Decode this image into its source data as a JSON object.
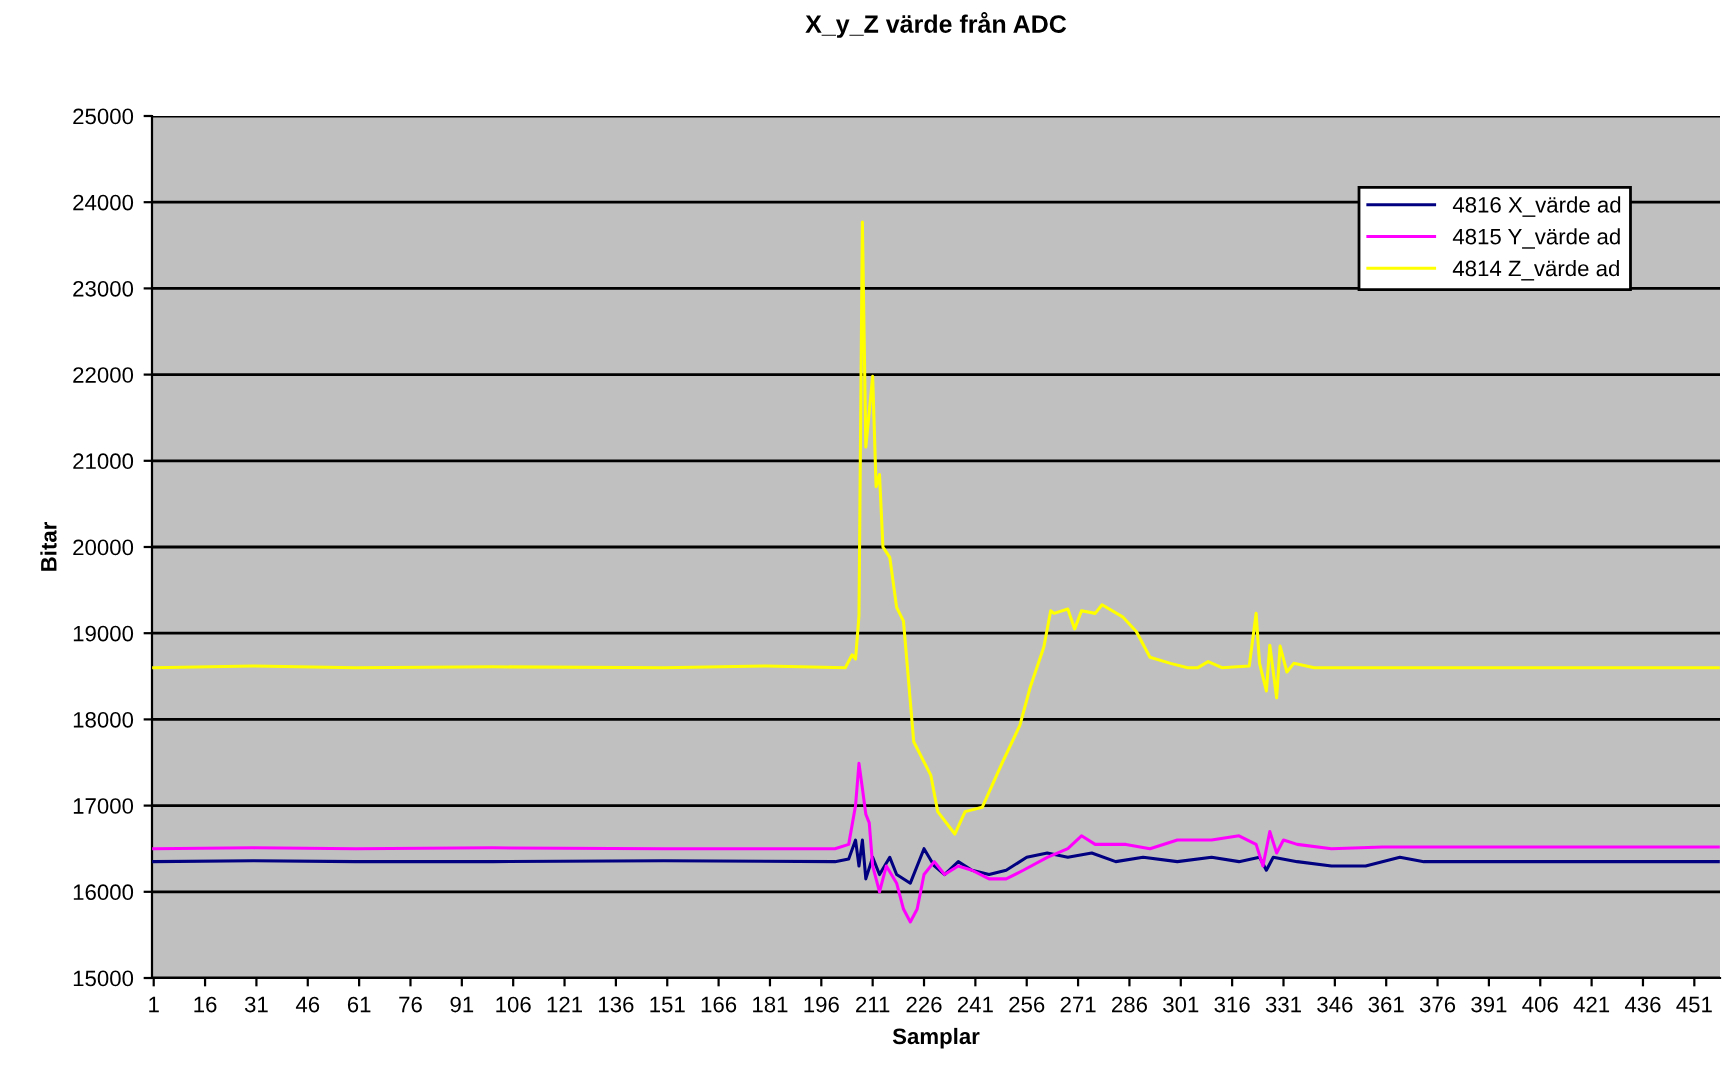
{
  "chart_data": {
    "type": "line",
    "title": "X_y_Z värde från ADC",
    "xlabel": "Samplar",
    "ylabel": "Bitar",
    "xlim": [
      0.5,
      458.5
    ],
    "xticks": [
      1,
      16,
      31,
      46,
      61,
      76,
      91,
      106,
      121,
      136,
      151,
      166,
      181,
      196,
      211,
      226,
      241,
      256,
      271,
      286,
      301,
      316,
      331,
      346,
      361,
      376,
      391,
      406,
      421,
      436,
      451
    ],
    "ylim": [
      15000,
      25000
    ],
    "yticks": [
      15000,
      16000,
      17000,
      18000,
      19000,
      20000,
      21000,
      22000,
      23000,
      24000,
      25000
    ],
    "grid": "y",
    "legend": "top right",
    "marker": "none",
    "line_style": "solid",
    "series": [
      {
        "name": "4816 X_värde ad",
        "color": "#000080",
        "x": [
          1,
          30,
          60,
          100,
          150,
          200,
          204,
          206,
          207,
          208,
          209,
          211,
          213,
          216,
          218,
          222,
          226,
          229,
          232,
          236,
          240,
          245,
          250,
          256,
          262,
          268,
          275,
          282,
          290,
          300,
          310,
          318,
          324,
          326,
          328,
          335,
          345,
          355,
          365,
          372,
          380,
          420,
          458
        ],
        "values": [
          16350,
          16360,
          16350,
          16350,
          16360,
          16350,
          16380,
          16600,
          16300,
          16600,
          16150,
          16400,
          16200,
          16400,
          16200,
          16100,
          16500,
          16300,
          16200,
          16350,
          16250,
          16200,
          16250,
          16400,
          16450,
          16400,
          16450,
          16350,
          16400,
          16350,
          16400,
          16350,
          16400,
          16250,
          16400,
          16350,
          16300,
          16300,
          16400,
          16350,
          16350,
          16350,
          16350
        ]
      },
      {
        "name": "4815 Y_värde ad",
        "color": "#ff00ff",
        "x": [
          1,
          30,
          60,
          100,
          150,
          200,
          204,
          206,
          207,
          208,
          209,
          210,
          211,
          213,
          215,
          218,
          220,
          222,
          224,
          226,
          229,
          232,
          236,
          240,
          245,
          250,
          255,
          262,
          268,
          272,
          276,
          285,
          292,
          300,
          310,
          318,
          323,
          325,
          327,
          329,
          331,
          335,
          345,
          360,
          400,
          458
        ],
        "values": [
          16500,
          16510,
          16500,
          16510,
          16500,
          16500,
          16550,
          17000,
          17490,
          17200,
          16900,
          16800,
          16300,
          16000,
          16300,
          16100,
          15800,
          15650,
          15800,
          16200,
          16350,
          16200,
          16300,
          16250,
          16150,
          16150,
          16250,
          16400,
          16500,
          16650,
          16550,
          16550,
          16500,
          16600,
          16600,
          16650,
          16550,
          16300,
          16700,
          16450,
          16600,
          16550,
          16500,
          16520,
          16520,
          16520
        ]
      },
      {
        "name": "4814 Z_värde ad",
        "color": "#ffff00",
        "x": [
          1,
          30,
          60,
          100,
          150,
          180,
          203,
          205,
          206,
          207,
          208,
          209,
          211,
          212,
          213,
          214,
          216,
          218,
          220,
          223,
          228,
          230,
          235,
          238,
          243,
          249,
          254,
          257,
          261,
          263,
          264,
          268,
          270,
          272,
          276,
          278,
          284,
          288,
          292,
          298,
          303,
          306,
          309,
          313,
          321,
          323,
          324,
          326,
          327,
          329,
          330,
          332,
          334,
          340,
          400,
          458
        ],
        "values": [
          18600,
          18620,
          18600,
          18610,
          18600,
          18620,
          18600,
          18750,
          18700,
          19200,
          23770,
          21160,
          21980,
          20700,
          20840,
          20000,
          19880,
          19300,
          19140,
          17740,
          17350,
          16930,
          16670,
          16930,
          16980,
          17510,
          17930,
          18370,
          18840,
          19260,
          19230,
          19280,
          19050,
          19260,
          19230,
          19330,
          19190,
          19020,
          18720,
          18650,
          18600,
          18600,
          18670,
          18600,
          18620,
          19230,
          18650,
          18330,
          18860,
          18250,
          18850,
          18550,
          18650,
          18600,
          18600,
          18600
        ]
      }
    ]
  }
}
